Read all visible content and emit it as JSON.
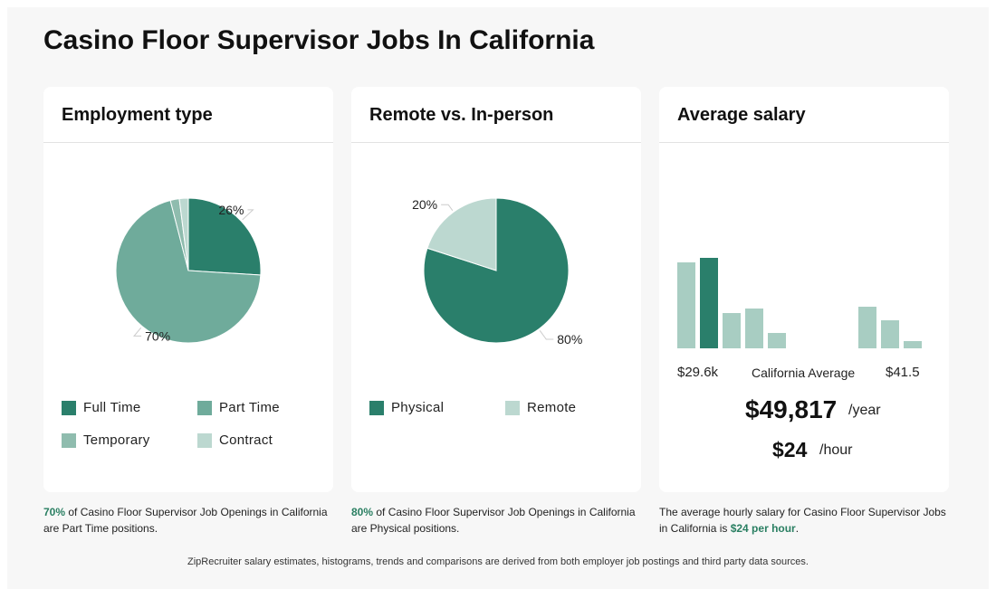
{
  "title": "Casino Floor Supervisor Jobs In California",
  "colors": {
    "full_time": "#2a7f6b",
    "part_time": "#6fab9b",
    "temporary": "#8fbcae",
    "contract": "#bcd8d0",
    "physical": "#2a7f6b",
    "remote": "#bcd8d0",
    "hist_normal": "#a8cdc2",
    "hist_highlight": "#2a7f6b",
    "accent": "#2a7f62"
  },
  "chart_data": [
    {
      "type": "pie",
      "title": "Employment type",
      "slices": [
        {
          "label": "Full Time",
          "value": 26,
          "label_text": "26%"
        },
        {
          "label": "Part Time",
          "value": 70,
          "label_text": "70%"
        },
        {
          "label": "Temporary",
          "value": 2,
          "label_text": ""
        },
        {
          "label": "Contract",
          "value": 2,
          "label_text": ""
        }
      ]
    },
    {
      "type": "pie",
      "title": "Remote vs. In-person",
      "slices": [
        {
          "label": "Physical",
          "value": 80,
          "label_text": "80%"
        },
        {
          "label": "Remote",
          "value": 20,
          "label_text": "20%"
        }
      ]
    },
    {
      "type": "bar",
      "title": "Average salary",
      "values": [
        19,
        20,
        7.8,
        8.8,
        3.4,
        0,
        0,
        0,
        9.2,
        6.2,
        1.6
      ],
      "highlight_index": 1,
      "ymax": 20,
      "min_label": "$29.6k",
      "mid_label": "California Average",
      "max_label": "$41.5"
    }
  ],
  "salary": {
    "yearly": "$49,817",
    "yearly_unit": "/year",
    "hourly": "$24",
    "hourly_unit": "/hour"
  },
  "captions": {
    "employment_pct": "70%",
    "employment_text": " of Casino Floor Supervisor Job Openings in California are Part Time positions.",
    "remote_pct": "80%",
    "remote_text": " of Casino Floor Supervisor Job Openings in California are Physical positions.",
    "salary_text_1": "The average hourly salary for Casino Floor Supervisor Jobs in California is ",
    "salary_hl": "$24 per hour",
    "salary_text_2": "."
  },
  "footnote": "ZipRecruiter salary estimates, histograms, trends and comparisons are derived from both employer job postings and third party data sources."
}
